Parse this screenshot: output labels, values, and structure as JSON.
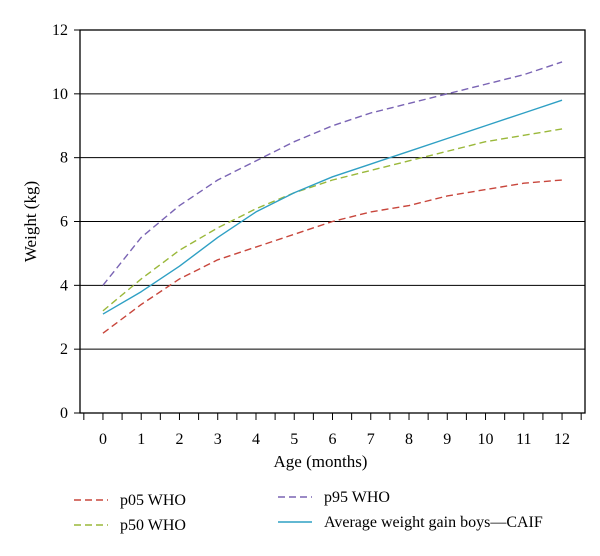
{
  "chart_data": {
    "type": "line",
    "title": "",
    "xlabel": "Age (months)",
    "ylabel": "Weight (kg)",
    "xlim": [
      -0.6,
      12.6
    ],
    "ylim": [
      0,
      12
    ],
    "x_ticks": [
      "0",
      "1",
      "2",
      "3",
      "4",
      "5",
      "6",
      "7",
      "8",
      "9",
      "10",
      "11",
      "12"
    ],
    "y_ticks": [
      "0",
      "2",
      "4",
      "6",
      "8",
      "10",
      "12"
    ],
    "grid": "horizontal",
    "legend_position": "bottom",
    "x": [
      0,
      1,
      2,
      3,
      4,
      5,
      6,
      7,
      8,
      9,
      10,
      11,
      12
    ],
    "series": [
      {
        "name": "p05 WHO",
        "color": "#c8463c",
        "style": "dashed",
        "values": [
          2.5,
          3.4,
          4.2,
          4.8,
          5.2,
          5.6,
          6.0,
          6.3,
          6.5,
          6.8,
          7.0,
          7.2,
          7.3
        ]
      },
      {
        "name": "p50 WHO",
        "color": "#9ab83a",
        "style": "dashed",
        "values": [
          3.2,
          4.2,
          5.1,
          5.8,
          6.4,
          6.9,
          7.3,
          7.6,
          7.9,
          8.2,
          8.5,
          8.7,
          8.9
        ]
      },
      {
        "name": "p95 WHO",
        "color": "#7a64b4",
        "style": "dashed",
        "values": [
          4.0,
          5.5,
          6.5,
          7.3,
          7.9,
          8.5,
          9.0,
          9.4,
          9.7,
          10.0,
          10.3,
          10.6,
          11.0
        ]
      },
      {
        "name": "Average weight gain boys—CAIF",
        "color": "#2fa0c4",
        "style": "solid",
        "values": [
          3.1,
          3.8,
          4.6,
          5.5,
          6.3,
          6.9,
          7.4,
          7.8,
          8.2,
          8.6,
          9.0,
          9.4,
          9.8
        ]
      }
    ]
  }
}
